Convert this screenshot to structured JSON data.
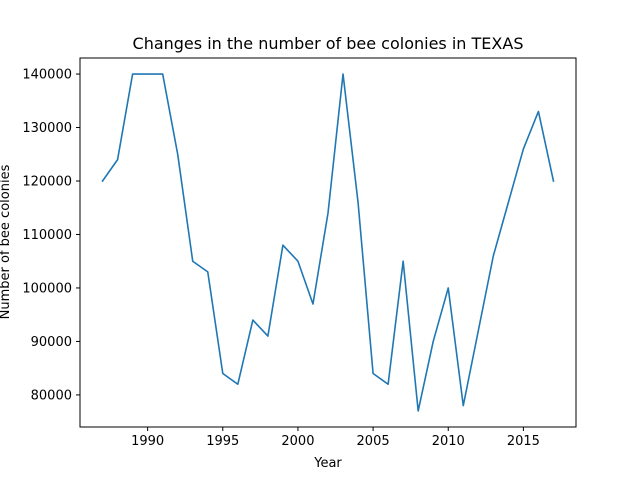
{
  "chart_data": {
    "type": "line",
    "title": "Changes in the number of bee colonies in TEXAS",
    "xlabel": "Year",
    "ylabel": "Number of bee colonies",
    "xlim": [
      1985.5,
      2018.5
    ],
    "ylim": [
      74000,
      143000
    ],
    "x_ticks": [
      1990,
      1995,
      2000,
      2005,
      2010,
      2015
    ],
    "y_ticks": [
      80000,
      90000,
      100000,
      110000,
      120000,
      130000,
      140000
    ],
    "grid": false,
    "color": "#1f77b4",
    "series": [
      {
        "x": [
          1987,
          1988,
          1989,
          1990,
          1991,
          1992,
          1993,
          1994,
          1995,
          1996,
          1997,
          1998,
          1999,
          2000,
          2001,
          2002,
          2003,
          2004,
          2005,
          2006,
          2007,
          2008,
          2009,
          2010,
          2011,
          2012,
          2013,
          2014,
          2015,
          2016,
          2017
        ],
        "values": [
          120000,
          124000,
          140000,
          140000,
          140000,
          125000,
          105000,
          103000,
          84000,
          82000,
          94000,
          91000,
          108000,
          105000,
          97000,
          114000,
          140000,
          116000,
          84000,
          82000,
          105000,
          77000,
          90000,
          100000,
          78000,
          92000,
          106000,
          116000,
          126000,
          133000,
          120000
        ]
      }
    ]
  }
}
